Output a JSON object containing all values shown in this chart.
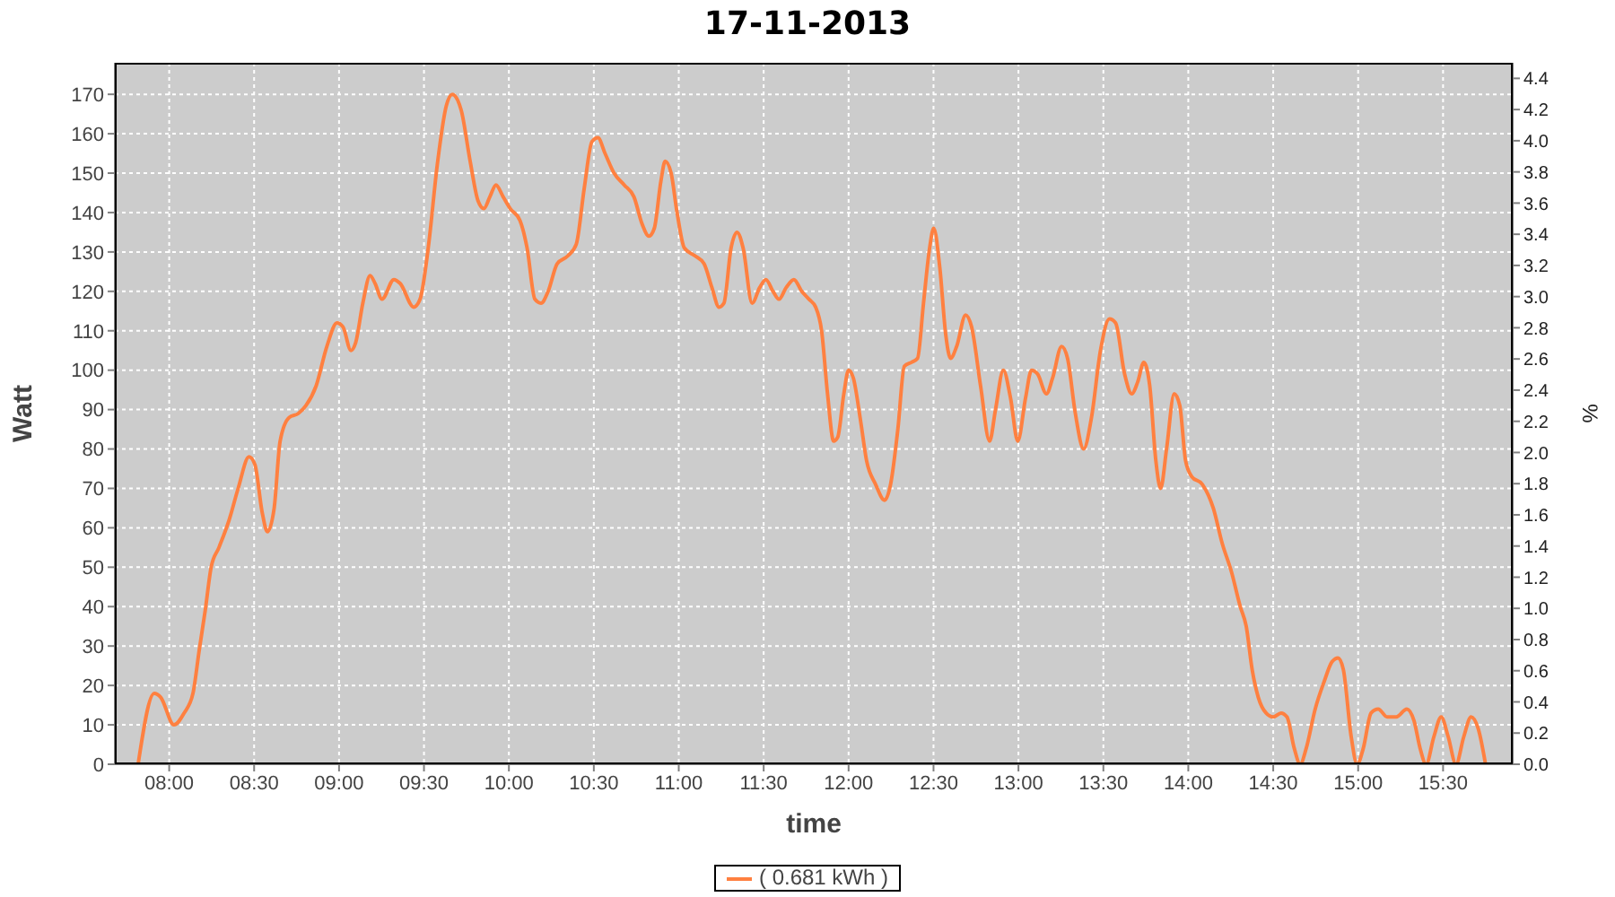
{
  "chart_data": {
    "type": "line",
    "title": "17-11-2013",
    "xlabel": "time",
    "ylabel": "Watt",
    "y2label": "%",
    "x": [
      7.817,
      7.912,
      7.95,
      8.028,
      8.088,
      8.14,
      8.177,
      8.212,
      8.247,
      8.293,
      8.353,
      8.406,
      8.47,
      8.505,
      8.547,
      8.578,
      8.618,
      8.653,
      8.706,
      8.76,
      8.805,
      8.865,
      8.928,
      8.988,
      9.023,
      9.07,
      9.098,
      9.14,
      9.183,
      9.212,
      9.253,
      9.323,
      9.36,
      9.44,
      9.477,
      9.525,
      9.578,
      9.631,
      9.666,
      9.719,
      9.772,
      9.818,
      9.853,
      9.888,
      9.924,
      9.966,
      10.008,
      10.065,
      10.107,
      10.153,
      10.189,
      10.231,
      10.284,
      10.347,
      10.397,
      10.443,
      10.489,
      10.524,
      10.566,
      10.619,
      10.679,
      10.736,
      10.785,
      10.824,
      10.856,
      10.895,
      10.92,
      10.955,
      10.99,
      11.033,
      11.096,
      11.149,
      11.195,
      11.237,
      11.266,
      11.308,
      11.343,
      11.379,
      11.432,
      11.477,
      11.513,
      11.555,
      11.59,
      11.633,
      11.678,
      11.724,
      11.767,
      11.806,
      11.841,
      11.876,
      11.912,
      11.936,
      11.972,
      12.0,
      12.028,
      12.071,
      12.106,
      12.159,
      12.212,
      12.247,
      12.29,
      12.328,
      12.371,
      12.406,
      12.441,
      12.477,
      12.501,
      12.537,
      12.572,
      12.6,
      12.636,
      12.689,
      12.724,
      12.777,
      12.83,
      12.865,
      12.911,
      12.953,
      12.996,
      13.042,
      13.077,
      13.113,
      13.165,
      13.201,
      13.254,
      13.289,
      13.335,
      13.384,
      13.43,
      13.483,
      13.536,
      13.572,
      13.625,
      13.667,
      13.702,
      13.738,
      13.773,
      13.809,
      13.837,
      13.872,
      13.917,
      13.95,
      13.984,
      14.02,
      14.083,
      14.147,
      14.2,
      14.253,
      14.306,
      14.341,
      14.376,
      14.412,
      14.458,
      14.5,
      14.546,
      14.581,
      14.624,
      14.659,
      14.694,
      14.747,
      14.8,
      14.846,
      14.882,
      14.913,
      14.959,
      14.994,
      15.03,
      15.076,
      15.118,
      15.171,
      15.224,
      15.287,
      15.329,
      15.365,
      15.4,
      15.446,
      15.489,
      15.53,
      15.576,
      15.622,
      15.665,
      15.707,
      15.75
    ],
    "series": [
      {
        "name": "( 0.681 kWh )",
        "color": "#ff8040",
        "values": [
          0,
          18,
          17,
          10,
          13,
          18,
          29,
          39,
          50,
          55,
          62,
          70,
          78,
          76,
          64,
          59,
          65,
          82,
          88,
          89,
          91,
          96,
          106,
          112,
          111,
          105,
          107,
          117,
          124,
          122,
          118,
          123,
          122,
          116,
          118,
          131,
          152,
          167,
          170,
          166,
          153,
          143,
          141,
          144,
          147,
          144,
          141,
          138,
          131,
          118,
          117,
          120,
          127,
          129,
          132,
          146,
          158,
          159,
          155,
          150,
          147,
          144,
          137,
          134,
          136,
          148,
          153,
          150,
          140,
          131,
          129,
          127,
          121,
          116,
          117,
          131,
          135,
          131,
          117,
          121,
          123,
          120,
          118,
          121,
          123,
          120,
          118,
          116,
          110,
          94,
          82,
          83,
          94,
          100,
          98,
          87,
          77,
          71,
          67,
          71,
          85,
          101,
          102,
          103,
          117,
          131,
          136,
          126,
          109,
          103,
          106,
          114,
          111,
          96,
          82,
          90,
          100,
          93,
          82,
          93,
          100,
          99,
          94,
          98,
          106,
          103,
          89,
          80,
          88,
          105,
          113,
          112,
          99,
          94,
          97,
          102,
          96,
          77,
          70,
          80,
          94,
          91,
          77,
          73,
          71,
          65,
          56,
          49,
          40,
          35,
          24,
          17,
          13,
          12,
          13,
          12,
          4,
          0,
          4,
          14,
          21,
          26,
          27,
          24,
          7,
          0,
          4,
          13,
          14,
          12,
          12,
          14,
          11,
          4,
          0,
          7,
          12,
          7,
          0,
          7,
          12,
          9,
          0
        ]
      }
    ],
    "xlim": [
      7.68,
      15.91
    ],
    "xticks": [
      {
        "value": 8,
        "label": "08:00"
      },
      {
        "value": 8.5,
        "label": "08:30"
      },
      {
        "value": 9,
        "label": "09:00"
      },
      {
        "value": 9.5,
        "label": "09:30"
      },
      {
        "value": 10,
        "label": "10:00"
      },
      {
        "value": 10.5,
        "label": "10:30"
      },
      {
        "value": 11,
        "label": "11:00"
      },
      {
        "value": 11.5,
        "label": "11:30"
      },
      {
        "value": 12,
        "label": "12:00"
      },
      {
        "value": 12.5,
        "label": "12:30"
      },
      {
        "value": 13,
        "label": "13:00"
      },
      {
        "value": 13.5,
        "label": "13:30"
      },
      {
        "value": 14,
        "label": "14:00"
      },
      {
        "value": 14.5,
        "label": "14:30"
      },
      {
        "value": 15,
        "label": "15:00"
      },
      {
        "value": 15.5,
        "label": "15:30"
      }
    ],
    "ylim": [
      0,
      178
    ],
    "yticks": [
      0,
      10,
      20,
      30,
      40,
      50,
      60,
      70,
      80,
      90,
      100,
      110,
      120,
      130,
      140,
      150,
      160,
      170
    ],
    "y2lim": [
      0,
      4.5
    ],
    "y2ticks": [
      {
        "value": 0,
        "label": "0.0"
      },
      0.2,
      0.4,
      0.6,
      0.8,
      {
        "value": 1,
        "label": "1.0"
      },
      1.2,
      1.4,
      1.6,
      1.8,
      {
        "value": 2,
        "label": "2.0"
      },
      2.2,
      2.4,
      2.6,
      2.8,
      {
        "value": 3,
        "label": "3.0"
      },
      3.2,
      3.4,
      3.6,
      3.8,
      {
        "value": 4,
        "label": "4.0"
      },
      4.2,
      4.4
    ],
    "grid": true,
    "legend": "bottom",
    "line_style": "solid"
  }
}
